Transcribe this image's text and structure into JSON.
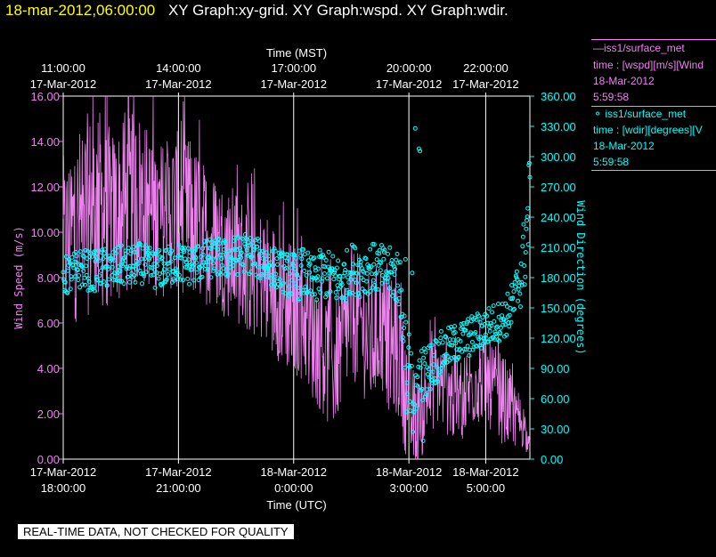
{
  "header": {
    "timestamp": "18-mar-2012,06:00:00",
    "titles": "XY Graph:xy-grid.  XY Graph:wspd.  XY Graph:wdir."
  },
  "legend": {
    "series1": {
      "name": "iss1/surface_met",
      "desc": "time : [wspd][m/s][Wind",
      "date": "18-Mar-2012",
      "time": "5:59:58",
      "color": "#ee82ee"
    },
    "series2": {
      "name": "iss1/surface_met",
      "desc": "time : [wdir][degrees][V",
      "date": "18-Mar-2012",
      "time": "5:59:58",
      "color": "#00ffff"
    }
  },
  "notice": "REAL-TIME DATA, NOT CHECKED FOR QUALITY",
  "chart_data": {
    "type": "line",
    "top_axis": {
      "label": "Time (MST)",
      "ticks": [
        {
          "x": 0,
          "time": "11:00:00",
          "date": "17-Mar-2012"
        },
        {
          "x": 3,
          "time": "14:00:00",
          "date": "17-Mar-2012"
        },
        {
          "x": 6,
          "time": "17:00:00",
          "date": "17-Mar-2012"
        },
        {
          "x": 9,
          "time": "20:00:00",
          "date": "17-Mar-2012"
        },
        {
          "x": 11,
          "time": "22:00:00",
          "date": "17-Mar-2012"
        }
      ]
    },
    "bottom_axis": {
      "label": "Time (UTC)",
      "range": [
        0,
        12.15
      ],
      "ticks": [
        {
          "x": 0,
          "date": "17-Mar-2012",
          "time": "18:00:00"
        },
        {
          "x": 3,
          "date": "17-Mar-2012",
          "time": "21:00:00"
        },
        {
          "x": 6,
          "date": "18-Mar-2012",
          "time": "0:00:00"
        },
        {
          "x": 9,
          "date": "18-Mar-2012",
          "time": "3:00:00"
        },
        {
          "x": 11,
          "date": "18-Mar-2012",
          "time": "5:00:00"
        }
      ]
    },
    "y_left": {
      "label": "Wind Speed (m/s)",
      "range": [
        0,
        16
      ],
      "ticks": [
        "0.00",
        "2.00",
        "4.00",
        "6.00",
        "8.00",
        "10.00",
        "12.00",
        "14.00",
        "16.00"
      ],
      "color": "#ee82ee"
    },
    "y_right": {
      "label": "Wind Direction (degrees)",
      "range": [
        0,
        360
      ],
      "ticks": [
        "0.00",
        "30.00",
        "60.00",
        "90.00",
        "120.00",
        "150.00",
        "180.00",
        "210.00",
        "240.00",
        "270.00",
        "300.00",
        "330.00",
        "360.00"
      ],
      "color": "#00ffff"
    },
    "grid": true,
    "series": [
      {
        "name": "iss1/surface_met",
        "quantity": "wspd",
        "color": "#ee82ee",
        "style": "line",
        "x": [
          0,
          0.25,
          0.5,
          0.75,
          1.0,
          1.25,
          1.5,
          1.75,
          2.0,
          2.25,
          2.5,
          2.75,
          3.0,
          3.25,
          3.5,
          3.75,
          4.0,
          4.25,
          4.5,
          4.75,
          5.0,
          5.25,
          5.5,
          5.75,
          6.0,
          6.25,
          6.5,
          6.75,
          7.0,
          7.25,
          7.5,
          7.75,
          8.0,
          8.25,
          8.5,
          8.75,
          9.0,
          9.25,
          9.5,
          9.75,
          10.0,
          10.25,
          10.5,
          10.75,
          11.0,
          11.25,
          11.5,
          11.75,
          12.0,
          12.15
        ],
        "mean": [
          9.5,
          10.0,
          10.5,
          11.0,
          11.0,
          10.5,
          10.8,
          11.2,
          11.5,
          11.0,
          10.5,
          10.8,
          11.0,
          10.5,
          10.2,
          9.8,
          9.5,
          9.2,
          9.0,
          8.5,
          8.2,
          8.0,
          7.5,
          7.0,
          6.5,
          6.5,
          5.5,
          5.0,
          4.0,
          5.0,
          6.5,
          6.0,
          5.0,
          6.0,
          5.0,
          4.5,
          2.0,
          1.5,
          3.0,
          3.5,
          3.0,
          2.5,
          3.0,
          3.5,
          3.5,
          3.0,
          2.5,
          2.0,
          1.5,
          0.3
        ],
        "spread": [
          3.5,
          4.0,
          4.5,
          4.5,
          4.5,
          4.0,
          4.0,
          4.0,
          4.0,
          3.5,
          3.5,
          3.5,
          3.5,
          3.5,
          3.5,
          3.0,
          3.0,
          3.0,
          3.0,
          3.0,
          3.0,
          3.0,
          3.0,
          3.0,
          3.0,
          3.0,
          3.0,
          3.0,
          3.0,
          3.0,
          3.0,
          3.0,
          3.0,
          3.0,
          3.0,
          3.0,
          2.5,
          2.0,
          2.0,
          2.0,
          2.0,
          2.0,
          2.0,
          2.0,
          2.0,
          2.0,
          2.0,
          1.5,
          1.0,
          0.5
        ]
      },
      {
        "name": "iss1/surface_met",
        "quantity": "wdir",
        "color": "#00ffff",
        "style": "circles",
        "x": [
          0,
          0.25,
          0.5,
          0.75,
          1.0,
          1.25,
          1.5,
          1.75,
          2.0,
          2.25,
          2.5,
          2.75,
          3.0,
          3.25,
          3.5,
          3.75,
          4.0,
          4.25,
          4.5,
          4.75,
          5.0,
          5.25,
          5.5,
          5.75,
          6.0,
          6.25,
          6.5,
          6.75,
          7.0,
          7.25,
          7.5,
          7.75,
          8.0,
          8.25,
          8.5,
          8.75,
          9.0,
          9.25,
          9.5,
          9.75,
          10.0,
          10.25,
          10.5,
          10.75,
          11.0,
          11.25,
          11.5,
          11.75,
          12.0,
          12.15
        ],
        "mean": [
          180,
          185,
          190,
          185,
          190,
          188,
          192,
          190,
          195,
          190,
          188,
          192,
          195,
          192,
          195,
          198,
          200,
          198,
          202,
          205,
          200,
          195,
          190,
          185,
          180,
          185,
          175,
          185,
          180,
          175,
          190,
          185,
          190,
          188,
          185,
          180,
          60,
          80,
          90,
          100,
          110,
          115,
          120,
          125,
          130,
          135,
          140,
          155,
          200,
          260
        ],
        "spread": [
          20,
          20,
          20,
          20,
          20,
          20,
          20,
          20,
          20,
          20,
          20,
          20,
          20,
          20,
          20,
          20,
          20,
          20,
          20,
          20,
          20,
          20,
          20,
          20,
          25,
          25,
          25,
          25,
          25,
          25,
          25,
          25,
          25,
          25,
          25,
          30,
          50,
          30,
          25,
          25,
          20,
          20,
          20,
          20,
          20,
          20,
          20,
          25,
          40,
          50
        ]
      }
    ]
  }
}
